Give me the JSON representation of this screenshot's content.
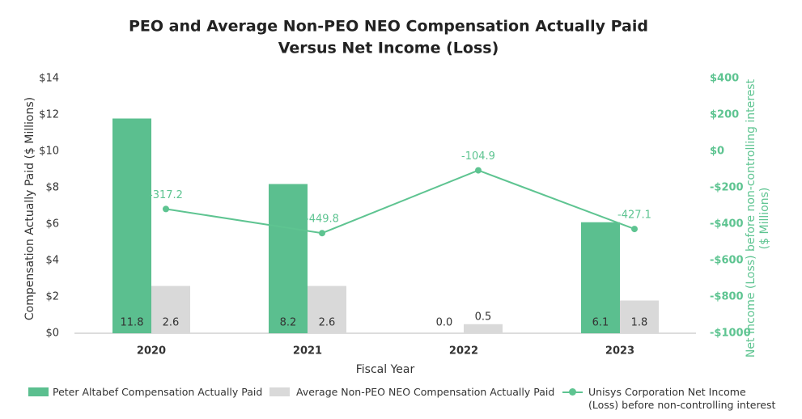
{
  "chart_data": {
    "type": "bar-line",
    "title": [
      "PEO and Average Non-PEO NEO Compensation Actually Paid",
      "Versus Net Income (Loss)"
    ],
    "x_label": "Fiscal Year",
    "y_label": "Compensation Actually Paid ($ Millions)",
    "y2_label": [
      "Net Income (Loss) before non-controlling interest",
      "($ Millions)"
    ],
    "categories": [
      "2020",
      "2021",
      "2022",
      "2023"
    ],
    "series": [
      {
        "name": "Peter Altabef Compensation Actually Paid",
        "type": "bar",
        "color": "#5bbf8f",
        "values": [
          11.8,
          8.2,
          0,
          6.1
        ],
        "value_labels": [
          "11.8",
          "8.2",
          "0.0",
          "6.1"
        ]
      },
      {
        "name": "Average Non-PEO NEO Compensation Actually Paid",
        "type": "bar",
        "color": "#d9d9d9",
        "values": [
          2.6,
          2.6,
          0.5,
          1.8
        ]
      },
      {
        "name": "Unisys Corporation Net Income (Loss) before non-controlling interest",
        "type": "line",
        "axis": "y2",
        "color": "#5ec491",
        "values": [
          -317.2,
          -449.8,
          -104.9,
          -427.1
        ]
      }
    ],
    "ylim": [
      0,
      14
    ],
    "yticks": [
      {
        "value": 0,
        "label": "$0"
      },
      {
        "value": 2,
        "label": "$2"
      },
      {
        "value": 4,
        "label": "$4"
      },
      {
        "value": 6,
        "label": "$6"
      },
      {
        "value": 8,
        "label": "$8"
      },
      {
        "value": 10,
        "label": "$10"
      },
      {
        "value": 12,
        "label": "$12"
      },
      {
        "value": 14,
        "label": "$14"
      }
    ],
    "y2lim": [
      -1000,
      400
    ],
    "y2ticks": [
      {
        "value": -1000,
        "label": "-$1000"
      },
      {
        "value": -800,
        "label": "-$800"
      },
      {
        "value": -600,
        "label": "-$600"
      },
      {
        "value": -400,
        "label": "-$400"
      },
      {
        "value": -200,
        "label": "-$200"
      },
      {
        "value": 0,
        "label": "$0"
      },
      {
        "value": 200,
        "label": "$200"
      },
      {
        "value": 400,
        "label": "$400"
      }
    ],
    "grid": false
  }
}
